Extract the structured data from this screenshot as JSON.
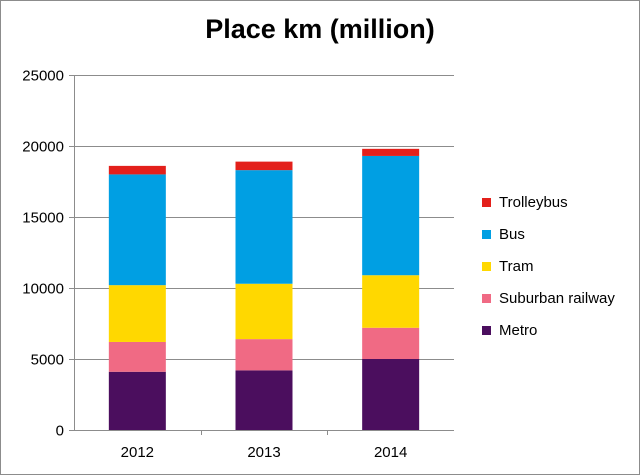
{
  "chart_data": {
    "type": "bar",
    "stacked": true,
    "title": "Place km (million)",
    "xlabel": "",
    "ylabel": "",
    "ylim": [
      0,
      25000
    ],
    "yticks": [
      0,
      5000,
      10000,
      15000,
      20000,
      25000
    ],
    "grid": true,
    "legend_position": "right",
    "categories": [
      "2012",
      "2013",
      "2014"
    ],
    "series": [
      {
        "name": "Metro",
        "color": "#4b0e5e",
        "values": [
          4100,
          4200,
          5000
        ]
      },
      {
        "name": "Suburban railway",
        "color": "#f06a84",
        "values": [
          2100,
          2200,
          2200
        ]
      },
      {
        "name": "Tram",
        "color": "#ffd800",
        "values": [
          4000,
          3900,
          3700
        ]
      },
      {
        "name": "Bus",
        "color": "#009fe3",
        "values": [
          7800,
          8000,
          8400
        ]
      },
      {
        "name": "Trolleybus",
        "color": "#e3201b",
        "values": [
          600,
          600,
          500
        ]
      }
    ]
  }
}
